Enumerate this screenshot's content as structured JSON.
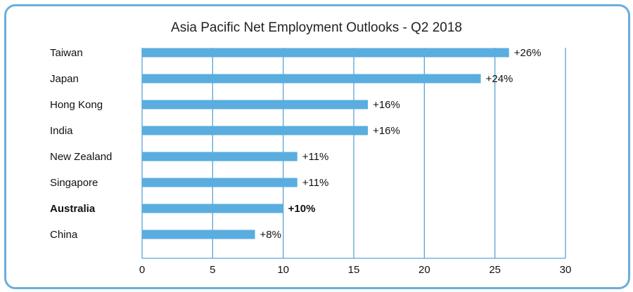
{
  "chart_data": {
    "type": "bar",
    "orientation": "horizontal",
    "title": "Asia Pacific Net Employment Outlooks - Q2 2018",
    "categories": [
      "Taiwan",
      "Japan",
      "Hong Kong",
      "India",
      "New Zealand",
      "Singapore",
      "Australia",
      "China"
    ],
    "values": [
      26,
      24,
      16,
      16,
      11,
      11,
      10,
      8
    ],
    "value_labels": [
      "+26%",
      "+24%",
      "+16%",
      "+16%",
      "+11%",
      "+11%",
      "+10%",
      "+8%"
    ],
    "highlighted_category": "Australia",
    "xlim": [
      0,
      30
    ],
    "xticks": [
      0,
      5,
      10,
      15,
      20,
      25,
      30
    ],
    "grid": true,
    "bar_color": "#5aaddf",
    "grid_color": "#5aa3d6",
    "frame_color": "#6aaedc"
  }
}
